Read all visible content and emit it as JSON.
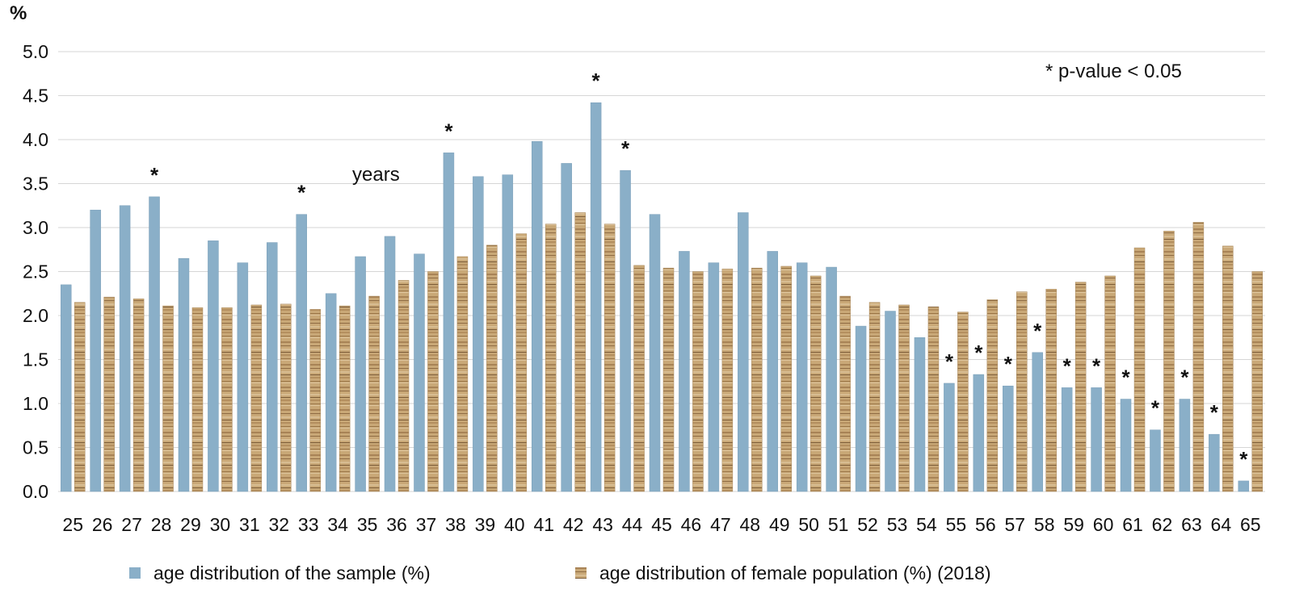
{
  "chart_data": {
    "type": "bar",
    "ylabel": "%",
    "xlabel": "",
    "ylim": [
      0,
      5
    ],
    "yticks": [
      "0.0",
      "0.5",
      "1.0",
      "1.5",
      "2.0",
      "2.5",
      "3.0",
      "3.5",
      "4.0",
      "4.5",
      "5.0"
    ],
    "grid": "horizontal",
    "legend_position": "bottom",
    "categories": [
      "25",
      "26",
      "27",
      "28",
      "29",
      "30",
      "31",
      "32",
      "33",
      "34",
      "35",
      "36",
      "37",
      "38",
      "39",
      "40",
      "41",
      "42",
      "43",
      "44",
      "45",
      "46",
      "47",
      "48",
      "49",
      "50",
      "51",
      "52",
      "53",
      "54",
      "55",
      "56",
      "57",
      "58",
      "59",
      "60",
      "61",
      "62",
      "63",
      "64",
      "65"
    ],
    "series": [
      {
        "name": "age distribution of the sample (%)",
        "color": "#8aafc8",
        "values": [
          2.35,
          3.2,
          3.25,
          3.35,
          2.65,
          2.85,
          2.6,
          2.83,
          3.15,
          2.25,
          2.67,
          2.9,
          2.7,
          3.85,
          3.58,
          3.6,
          3.98,
          3.73,
          4.42,
          3.65,
          3.15,
          2.73,
          2.6,
          3.17,
          2.73,
          2.6,
          2.55,
          1.88,
          2.05,
          1.75,
          1.23,
          1.33,
          1.2,
          1.58,
          1.18,
          1.18,
          1.05,
          0.7,
          1.05,
          0.65,
          0.12
        ]
      },
      {
        "name": "age distribution of female population (%) (2018)",
        "color": "#c9a877",
        "values": [
          2.15,
          2.21,
          2.19,
          2.11,
          2.09,
          2.09,
          2.12,
          2.13,
          2.07,
          2.11,
          2.22,
          2.4,
          2.5,
          2.67,
          2.8,
          2.93,
          3.04,
          3.17,
          3.04,
          2.57,
          2.54,
          2.5,
          2.53,
          2.54,
          2.56,
          2.45,
          2.22,
          2.15,
          2.12,
          2.1,
          2.04,
          2.18,
          2.27,
          2.3,
          2.38,
          2.45,
          2.77,
          2.96,
          3.06,
          2.79,
          2.5
        ]
      }
    ],
    "significant": [
      "28",
      "33",
      "38",
      "43",
      "44",
      "55",
      "56",
      "57",
      "58",
      "59",
      "60",
      "61",
      "62",
      "63",
      "64",
      "65"
    ],
    "star_symbol": "*",
    "annotations": {
      "inner_label": "years",
      "pvalue_note": "* p-value < 0.05"
    }
  }
}
